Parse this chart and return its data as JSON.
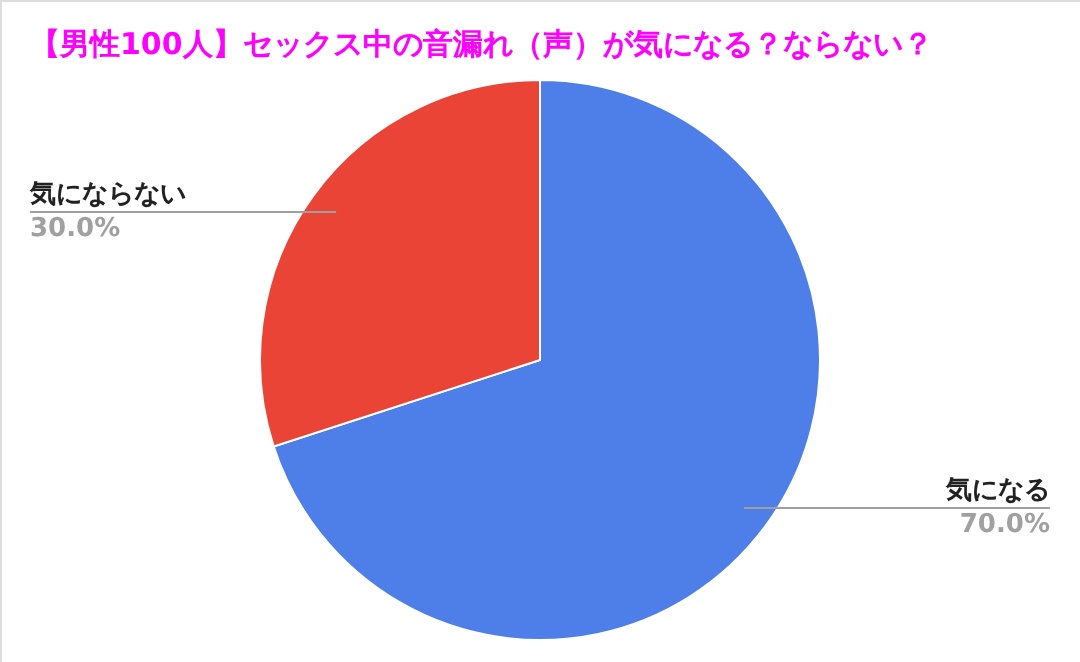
{
  "chart_data": {
    "type": "pie",
    "title": "【男性100人】セックス中の音漏れ（声）が気になる？ならない？",
    "categories": [
      "気になる",
      "気にならない"
    ],
    "values": [
      70,
      30
    ],
    "colors": [
      "#4e7fe8",
      "#e94435"
    ],
    "value_labels": [
      "70.0%",
      "30.0%"
    ]
  }
}
